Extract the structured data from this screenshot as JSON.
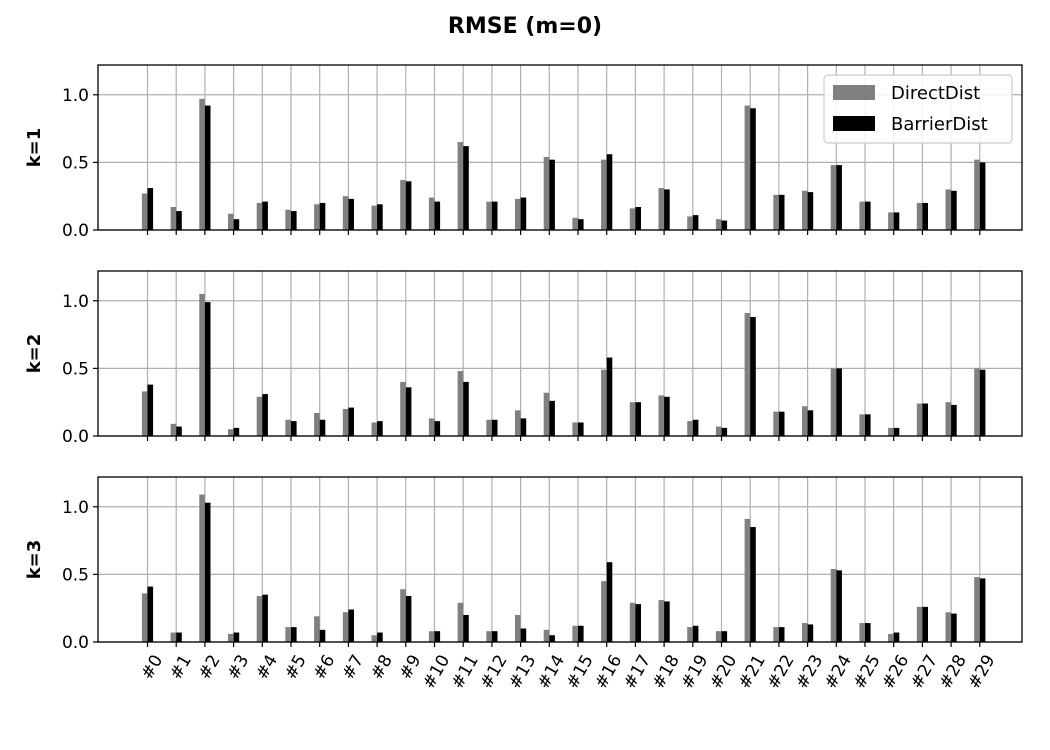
{
  "chart_data": {
    "type": "bar",
    "title": "RMSE   (m=0)",
    "categories": [
      "#0",
      "#1",
      "#2",
      "#3",
      "#4",
      "#5",
      "#6",
      "#7",
      "#8",
      "#9",
      "#10",
      "#11",
      "#12",
      "#13",
      "#14",
      "#15",
      "#16",
      "#17",
      "#18",
      "#19",
      "#20",
      "#21",
      "#22",
      "#23",
      "#24",
      "#25",
      "#26",
      "#27",
      "#28",
      "#29"
    ],
    "yticks": [
      "0.0",
      "0.5",
      "1.0"
    ],
    "ylim": [
      0,
      1.22
    ],
    "grid": true,
    "legend": {
      "placement": "top-right",
      "entries": [
        "DirectDist",
        "BarrierDist"
      ]
    },
    "colors": {
      "DirectDist": "#808080",
      "BarrierDist": "#000000",
      "grid": "#b0b0b0"
    },
    "panels": [
      {
        "ylabel": "k=1",
        "series": [
          {
            "name": "DirectDist",
            "values": [
              0.27,
              0.17,
              0.97,
              0.12,
              0.2,
              0.15,
              0.19,
              0.25,
              0.18,
              0.37,
              0.24,
              0.65,
              0.21,
              0.23,
              0.54,
              0.09,
              0.52,
              0.16,
              0.31,
              0.1,
              0.08,
              0.92,
              0.26,
              0.29,
              0.48,
              0.21,
              0.13,
              0.2,
              0.3,
              0.52
            ]
          },
          {
            "name": "BarrierDist",
            "values": [
              0.31,
              0.14,
              0.92,
              0.08,
              0.21,
              0.14,
              0.2,
              0.23,
              0.19,
              0.36,
              0.21,
              0.62,
              0.21,
              0.24,
              0.52,
              0.08,
              0.56,
              0.17,
              0.3,
              0.11,
              0.07,
              0.9,
              0.26,
              0.28,
              0.48,
              0.21,
              0.13,
              0.2,
              0.29,
              0.5
            ]
          }
        ]
      },
      {
        "ylabel": "k=2",
        "series": [
          {
            "name": "DirectDist",
            "values": [
              0.33,
              0.09,
              1.05,
              0.05,
              0.29,
              0.12,
              0.17,
              0.2,
              0.1,
              0.4,
              0.13,
              0.48,
              0.12,
              0.19,
              0.32,
              0.1,
              0.49,
              0.25,
              0.3,
              0.11,
              0.07,
              0.91,
              0.18,
              0.22,
              0.5,
              0.16,
              0.06,
              0.24,
              0.25,
              0.5
            ]
          },
          {
            "name": "BarrierDist",
            "values": [
              0.38,
              0.07,
              0.99,
              0.06,
              0.31,
              0.11,
              0.12,
              0.21,
              0.11,
              0.36,
              0.11,
              0.4,
              0.12,
              0.13,
              0.26,
              0.1,
              0.58,
              0.25,
              0.29,
              0.12,
              0.06,
              0.88,
              0.18,
              0.19,
              0.5,
              0.16,
              0.06,
              0.24,
              0.23,
              0.49
            ]
          }
        ]
      },
      {
        "ylabel": "k=3",
        "series": [
          {
            "name": "DirectDist",
            "values": [
              0.36,
              0.07,
              1.09,
              0.06,
              0.34,
              0.11,
              0.19,
              0.22,
              0.05,
              0.39,
              0.08,
              0.29,
              0.08,
              0.2,
              0.09,
              0.12,
              0.45,
              0.29,
              0.31,
              0.11,
              0.08,
              0.91,
              0.11,
              0.14,
              0.54,
              0.14,
              0.06,
              0.26,
              0.22,
              0.48
            ]
          },
          {
            "name": "BarrierDist",
            "values": [
              0.41,
              0.07,
              1.03,
              0.07,
              0.35,
              0.11,
              0.09,
              0.24,
              0.07,
              0.34,
              0.08,
              0.2,
              0.08,
              0.1,
              0.05,
              0.12,
              0.59,
              0.28,
              0.3,
              0.12,
              0.08,
              0.85,
              0.11,
              0.13,
              0.53,
              0.14,
              0.07,
              0.26,
              0.21,
              0.47
            ]
          }
        ]
      }
    ]
  }
}
